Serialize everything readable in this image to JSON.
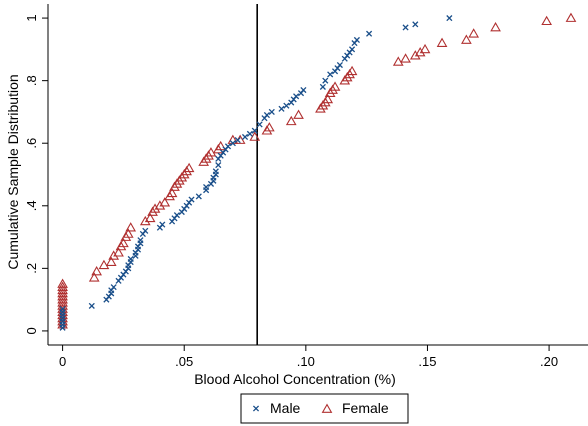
{
  "chart_data": {
    "type": "scatter",
    "xlabel": "Blood Alcohol Concentration (%)",
    "ylabel": "Cumulative Sample Distribution",
    "xlim": [
      -0.006,
      0.216
    ],
    "ylim": [
      -0.045,
      1.045
    ],
    "x_ticks": [
      0,
      0.05,
      0.1,
      0.15,
      0.2
    ],
    "x_tick_labels": [
      "0",
      ".05",
      ".10",
      ".15",
      ".20"
    ],
    "y_ticks": [
      0,
      0.2,
      0.4,
      0.6,
      0.8,
      1
    ],
    "y_tick_labels": [
      "0",
      ".2",
      ".4",
      ".6",
      ".8",
      "1"
    ],
    "grid": false,
    "legend_position": "bottom-center",
    "reference_line": {
      "x": 0.08
    },
    "series": [
      {
        "name": "Male",
        "marker": "x",
        "color": "#1a4f8a",
        "points": [
          [
            0,
            0.01
          ],
          [
            0,
            0.02
          ],
          [
            0,
            0.03
          ],
          [
            0,
            0.04
          ],
          [
            0,
            0.05
          ],
          [
            0,
            0.06
          ],
          [
            0,
            0.07
          ],
          [
            0.012,
            0.08
          ],
          [
            0.018,
            0.1
          ],
          [
            0.019,
            0.11
          ],
          [
            0.02,
            0.12
          ],
          [
            0.02,
            0.13
          ],
          [
            0.021,
            0.14
          ],
          [
            0.023,
            0.16
          ],
          [
            0.024,
            0.17
          ],
          [
            0.025,
            0.18
          ],
          [
            0.026,
            0.19
          ],
          [
            0.027,
            0.2
          ],
          [
            0.027,
            0.21
          ],
          [
            0.028,
            0.22
          ],
          [
            0.028,
            0.23
          ],
          [
            0.03,
            0.24
          ],
          [
            0.03,
            0.25
          ],
          [
            0.031,
            0.26
          ],
          [
            0.031,
            0.27
          ],
          [
            0.032,
            0.28
          ],
          [
            0.032,
            0.29
          ],
          [
            0.033,
            0.31
          ],
          [
            0.034,
            0.32
          ],
          [
            0.04,
            0.33
          ],
          [
            0.041,
            0.34
          ],
          [
            0.045,
            0.35
          ],
          [
            0.046,
            0.36
          ],
          [
            0.047,
            0.37
          ],
          [
            0.049,
            0.38
          ],
          [
            0.05,
            0.39
          ],
          [
            0.051,
            0.4
          ],
          [
            0.052,
            0.41
          ],
          [
            0.053,
            0.42
          ],
          [
            0.056,
            0.43
          ],
          [
            0.059,
            0.45
          ],
          [
            0.059,
            0.46
          ],
          [
            0.061,
            0.47
          ],
          [
            0.062,
            0.48
          ],
          [
            0.062,
            0.49
          ],
          [
            0.063,
            0.5
          ],
          [
            0.063,
            0.51
          ],
          [
            0.064,
            0.53
          ],
          [
            0.064,
            0.55
          ],
          [
            0.065,
            0.56
          ],
          [
            0.066,
            0.57
          ],
          [
            0.067,
            0.58
          ],
          [
            0.068,
            0.59
          ],
          [
            0.07,
            0.6
          ],
          [
            0.072,
            0.61
          ],
          [
            0.075,
            0.62
          ],
          [
            0.077,
            0.63
          ],
          [
            0.079,
            0.64
          ],
          [
            0.081,
            0.66
          ],
          [
            0.083,
            0.68
          ],
          [
            0.084,
            0.69
          ],
          [
            0.086,
            0.7
          ],
          [
            0.09,
            0.71
          ],
          [
            0.092,
            0.72
          ],
          [
            0.094,
            0.73
          ],
          [
            0.095,
            0.74
          ],
          [
            0.096,
            0.75
          ],
          [
            0.098,
            0.76
          ],
          [
            0.099,
            0.77
          ],
          [
            0.107,
            0.78
          ],
          [
            0.108,
            0.8
          ],
          [
            0.11,
            0.82
          ],
          [
            0.112,
            0.83
          ],
          [
            0.113,
            0.84
          ],
          [
            0.114,
            0.85
          ],
          [
            0.116,
            0.87
          ],
          [
            0.117,
            0.88
          ],
          [
            0.118,
            0.89
          ],
          [
            0.119,
            0.9
          ],
          [
            0.12,
            0.92
          ],
          [
            0.121,
            0.93
          ],
          [
            0.126,
            0.95
          ],
          [
            0.141,
            0.97
          ],
          [
            0.145,
            0.98
          ],
          [
            0.159,
            1.0
          ]
        ]
      },
      {
        "name": "Female",
        "marker": "triangle",
        "color": "#b03030",
        "points": [
          [
            0,
            0.02
          ],
          [
            0,
            0.03
          ],
          [
            0,
            0.04
          ],
          [
            0,
            0.05
          ],
          [
            0,
            0.06
          ],
          [
            0,
            0.07
          ],
          [
            0,
            0.08
          ],
          [
            0,
            0.09
          ],
          [
            0,
            0.1
          ],
          [
            0,
            0.11
          ],
          [
            0,
            0.12
          ],
          [
            0,
            0.13
          ],
          [
            0,
            0.14
          ],
          [
            0,
            0.15
          ],
          [
            0.013,
            0.17
          ],
          [
            0.014,
            0.19
          ],
          [
            0.017,
            0.21
          ],
          [
            0.02,
            0.22
          ],
          [
            0.021,
            0.24
          ],
          [
            0.023,
            0.25
          ],
          [
            0.024,
            0.27
          ],
          [
            0.025,
            0.28
          ],
          [
            0.026,
            0.3
          ],
          [
            0.027,
            0.31
          ],
          [
            0.028,
            0.33
          ],
          [
            0.034,
            0.35
          ],
          [
            0.036,
            0.36
          ],
          [
            0.037,
            0.38
          ],
          [
            0.038,
            0.39
          ],
          [
            0.04,
            0.4
          ],
          [
            0.042,
            0.41
          ],
          [
            0.044,
            0.43
          ],
          [
            0.045,
            0.44
          ],
          [
            0.046,
            0.46
          ],
          [
            0.047,
            0.47
          ],
          [
            0.048,
            0.48
          ],
          [
            0.049,
            0.49
          ],
          [
            0.05,
            0.5
          ],
          [
            0.051,
            0.51
          ],
          [
            0.052,
            0.52
          ],
          [
            0.058,
            0.54
          ],
          [
            0.059,
            0.55
          ],
          [
            0.06,
            0.56
          ],
          [
            0.061,
            0.57
          ],
          [
            0.064,
            0.58
          ],
          [
            0.065,
            0.59
          ],
          [
            0.07,
            0.61
          ],
          [
            0.073,
            0.61
          ],
          [
            0.079,
            0.62
          ],
          [
            0.084,
            0.64
          ],
          [
            0.085,
            0.65
          ],
          [
            0.094,
            0.67
          ],
          [
            0.097,
            0.69
          ],
          [
            0.106,
            0.71
          ],
          [
            0.107,
            0.72
          ],
          [
            0.108,
            0.73
          ],
          [
            0.109,
            0.74
          ],
          [
            0.11,
            0.76
          ],
          [
            0.111,
            0.77
          ],
          [
            0.112,
            0.78
          ],
          [
            0.116,
            0.8
          ],
          [
            0.117,
            0.81
          ],
          [
            0.118,
            0.82
          ],
          [
            0.119,
            0.83
          ],
          [
            0.138,
            0.86
          ],
          [
            0.141,
            0.87
          ],
          [
            0.145,
            0.88
          ],
          [
            0.147,
            0.89
          ],
          [
            0.149,
            0.9
          ],
          [
            0.156,
            0.92
          ],
          [
            0.166,
            0.93
          ],
          [
            0.169,
            0.95
          ],
          [
            0.178,
            0.97
          ],
          [
            0.199,
            0.99
          ],
          [
            0.209,
            1.0
          ]
        ]
      }
    ]
  }
}
